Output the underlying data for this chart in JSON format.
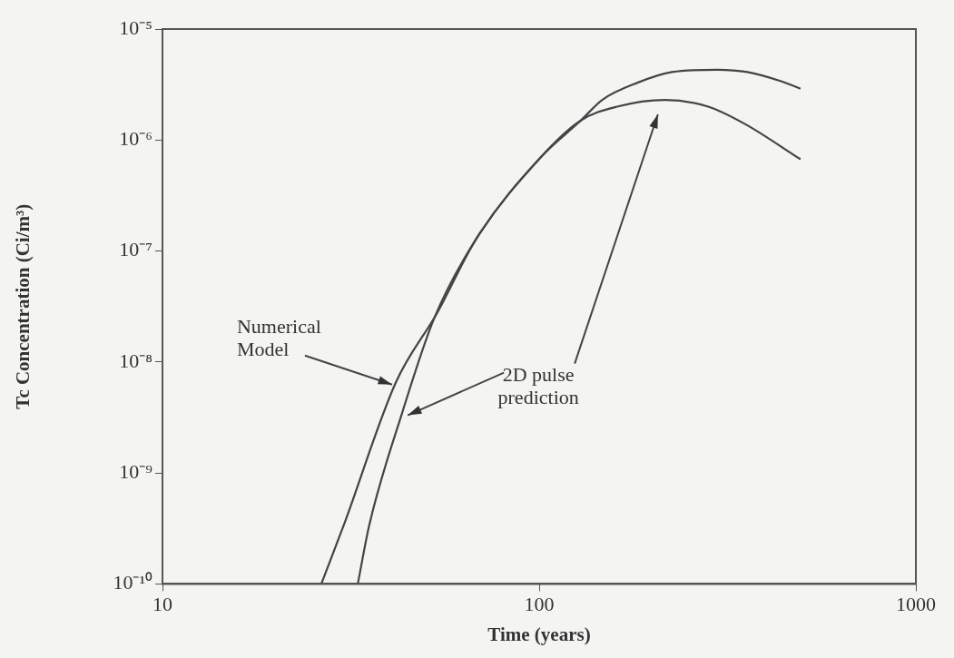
{
  "chart_data": {
    "type": "line",
    "xlabel": "Time (years)",
    "ylabel": "Tc Concentration (Ci/m³)",
    "log": "xy",
    "grid": false,
    "legend": false,
    "marker": "none",
    "line_style": "solid",
    "xlim": [
      10,
      1000
    ],
    "xticks": [
      10,
      100,
      1000
    ],
    "ylim": [
      1e-10,
      1e-05
    ],
    "yticks": [
      {
        "value": 1e-10,
        "label": "10⁻¹⁰"
      },
      {
        "value": 1e-09,
        "label": "10⁻⁹"
      },
      {
        "value": 1e-08,
        "label": "10⁻⁸"
      },
      {
        "value": 1e-07,
        "label": "10⁻⁷"
      },
      {
        "value": 1e-06,
        "label": "10⁻⁶"
      },
      {
        "value": 1e-05,
        "label": "10⁻⁵"
      }
    ],
    "series": [
      {
        "color": "#444444",
        "x": [
          26.4,
          30.3,
          41.6,
          53.7,
          68.2,
          101,
          129,
          147,
          183,
          225,
          297,
          357,
          437,
          494
        ],
        "values": [
          1e-10,
          3.4e-10,
          6.5e-09,
          2.8e-08,
          1.3e-07,
          7e-07,
          1.5e-06,
          2.3e-06,
          3.3e-06,
          4.1e-06,
          4.3e-06,
          4.1e-06,
          3.4e-06,
          2.9e-06
        ]
      },
      {
        "color": "#444444",
        "x": [
          33,
          35.4,
          43.3,
          52.7,
          68.2,
          101,
          129,
          161,
          216,
          281,
          351,
          494
        ],
        "values": [
          1e-10,
          3.4e-10,
          3.5e-09,
          2.5e-08,
          1.3e-07,
          7e-07,
          1.5e-06,
          2e-06,
          2.3e-06,
          2e-06,
          1.4e-06,
          6.7e-07
        ]
      }
    ],
    "annotations": [
      {
        "text": "Numerical\nModel",
        "x": 41.6,
        "y": 6.5e-09
      },
      {
        "text": "2D pulse\nprediction",
        "x": 43.3,
        "y": 3.5e-09
      }
    ]
  }
}
